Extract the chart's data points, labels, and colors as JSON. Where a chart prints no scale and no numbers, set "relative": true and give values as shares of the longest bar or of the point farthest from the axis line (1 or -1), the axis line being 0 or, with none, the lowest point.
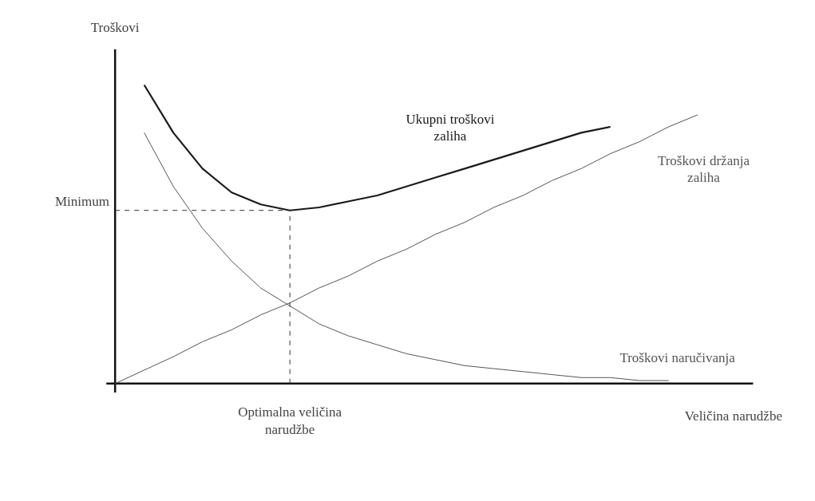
{
  "chart_data": {
    "type": "line",
    "relative": true,
    "xlabel": "Veličina narudžbe",
    "ylabel": "Troškovi",
    "categories": [
      null,
      null,
      null,
      null,
      null,
      null,
      null,
      null,
      null,
      null,
      null,
      null,
      null,
      null,
      null,
      null,
      null,
      null,
      null,
      null,
      null
    ],
    "series": [
      {
        "name": "Ukupni troškovi zaliha",
        "color": "#1a1a1a",
        "values": [
          null,
          1.0,
          0.84,
          0.72,
          0.64,
          0.6,
          0.58,
          0.59,
          0.61,
          0.63,
          0.66,
          0.69,
          0.72,
          0.75,
          0.78,
          0.81,
          0.84,
          0.86,
          null,
          null,
          null
        ]
      },
      {
        "name": "Troškovi držanja zaliha",
        "color": "#555555",
        "values": [
          0,
          0.045,
          0.09,
          0.14,
          0.18,
          0.23,
          0.27,
          0.32,
          0.36,
          0.41,
          0.45,
          0.5,
          0.54,
          0.59,
          0.63,
          0.68,
          0.72,
          0.77,
          0.81,
          0.86,
          0.9
        ]
      },
      {
        "name": "Troškovi naručivanja",
        "color": "#555555",
        "values": [
          null,
          0.84,
          0.66,
          0.52,
          0.41,
          0.32,
          0.26,
          0.2,
          0.16,
          0.13,
          0.1,
          0.08,
          0.06,
          0.05,
          0.04,
          0.03,
          0.02,
          0.02,
          0.01,
          0.01,
          null
        ]
      }
    ],
    "ref_lines": [
      {
        "axis": "y",
        "value": 0.58,
        "label": "Minimum",
        "line_style": "dashed",
        "color": "#333333"
      }
    ],
    "annotations": [
      "Optimalna veličina narudžbe"
    ],
    "tick_labels": false,
    "grid": false,
    "marker": "none",
    "line_style": "solid"
  }
}
